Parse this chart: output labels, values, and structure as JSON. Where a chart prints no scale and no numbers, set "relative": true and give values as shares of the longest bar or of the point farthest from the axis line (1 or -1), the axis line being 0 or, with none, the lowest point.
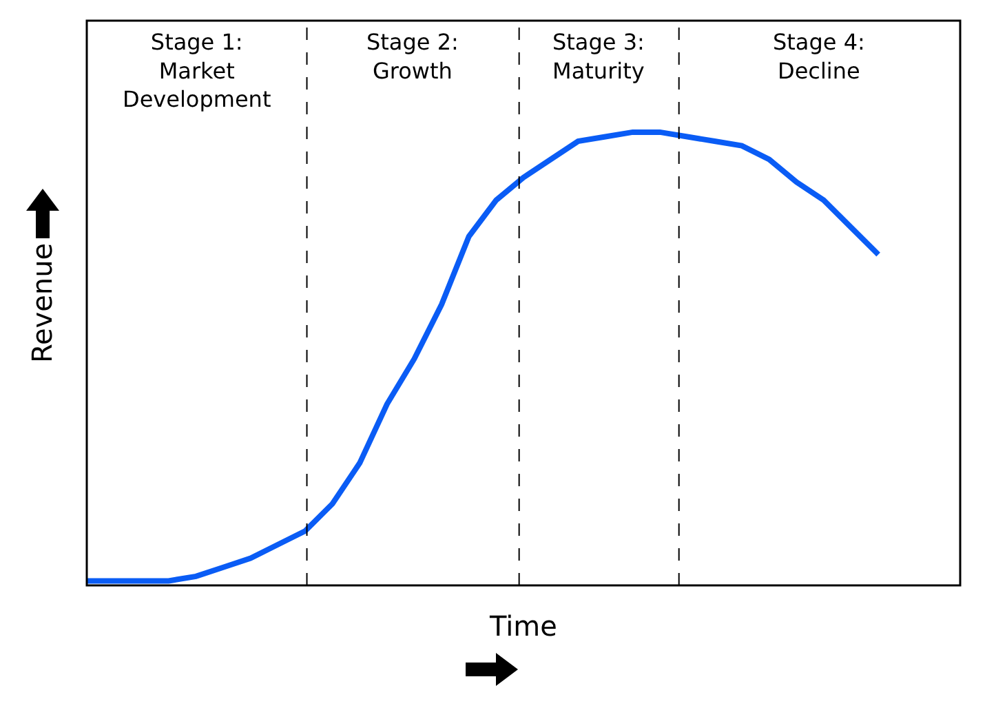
{
  "chart_data": {
    "type": "line",
    "relative": true,
    "xlabel": "Time",
    "ylabel": "Revenue",
    "categories": [
      null,
      null,
      null,
      null,
      null,
      null,
      null,
      null,
      null,
      null,
      null,
      null,
      null,
      null,
      null,
      null,
      null,
      null,
      null,
      null,
      null,
      null,
      null,
      null,
      null,
      null,
      null,
      null,
      null,
      null,
      null,
      null,
      null
    ],
    "series": [
      {
        "color": "#0a5cf5",
        "values": [
          0.01,
          0.01,
          0.01,
          0.01,
          0.02,
          0.04,
          0.06,
          0.09,
          0.12,
          0.18,
          0.27,
          0.4,
          0.5,
          0.62,
          0.77,
          0.85,
          0.9,
          0.94,
          0.98,
          0.99,
          1,
          1,
          0.99,
          0.98,
          0.97,
          0.94,
          0.89,
          0.85,
          0.79,
          0.73,
          null,
          null,
          null
        ]
      }
    ],
    "annotations": [
      "Stage 1:\nMarket\nDevelopment",
      "Stage 2:\nGrowth",
      "Stage 3:\nMaturity",
      "Stage 4:\nDecline"
    ],
    "grid": false,
    "marker": "none",
    "line_style": "solid"
  }
}
